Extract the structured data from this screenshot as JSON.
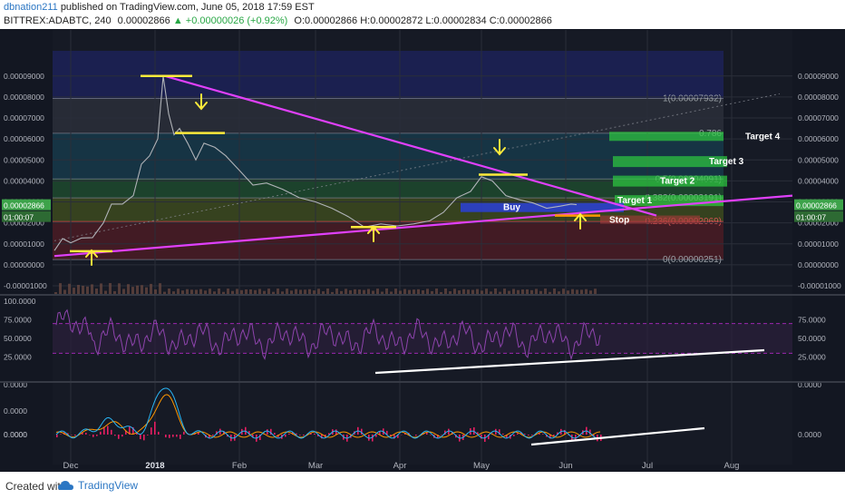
{
  "header": {
    "author": "dbnation211",
    "published": "published on TradingView.com, June 05, 2018 17:59 EST",
    "symbol": "BITTREX:ADABTC, 240",
    "price": "0.00002866",
    "change_arrow": "▲",
    "change": "+0.00000026 (+0.92%)",
    "ohlc": "O:0.00002866  H:0.00002872  L:0.00002834  C:0.00002866"
  },
  "footer": {
    "created": "Created with",
    "brand": "TradingView",
    "brand_icon": "tradingview-cloud-icon"
  },
  "colors": {
    "background": "#131722",
    "price_line": "#b0b3b8",
    "trendline": "#e040fb",
    "marker_yellow": "#ffeb3b",
    "target_green": "#2ecc40",
    "buy_blue": "#2a3fd8",
    "rsi_line": "#8e44ad",
    "macd_line": "#29b6f6",
    "signal_line": "#ff9800",
    "histogram": "#e91e63",
    "support_line": "#ffffff"
  },
  "chart_data": [
    {
      "type": "line",
      "title": "BITTREX:ADABTC, 240",
      "x_ticks": [
        "Dec",
        "2018",
        "Feb",
        "Mar",
        "Apr",
        "May",
        "Jun",
        "Jul",
        "Aug"
      ],
      "y_ticks_left": [
        "0.00009000",
        "0.00008000",
        "0.00007000",
        "0.00006000",
        "0.00005000",
        "0.00004000",
        "0.00003000",
        "0.00002000",
        "0.00001000",
        "0.00000000",
        "-0.00001000"
      ],
      "y_ticks_right": [
        "0.00009000",
        "0.00008000",
        "0.00007000",
        "0.00006000",
        "0.00005000",
        "0.00004000",
        "0.00003000",
        "0.00002000",
        "0.00001000",
        "0.00000000",
        "-0.00001000"
      ],
      "ylim": [
        -1.3e-05,
        0.000102
      ],
      "current_price_label": "0.00002866",
      "countdown_label": "01:00:07",
      "series": [
        {
          "values": [
            [
              "2017-11-25",
              6.8e-06
            ],
            [
              "2017-11-28",
              1.25e-05
            ],
            [
              "2017-12-01",
              1.05e-05
            ],
            [
              "2017-12-05",
              1.28e-05
            ],
            [
              "2017-12-09",
              1.3e-05
            ],
            [
              "2017-12-13",
              2e-05
            ],
            [
              "2017-12-16",
              2.9e-05
            ],
            [
              "2017-12-20",
              2.9e-05
            ],
            [
              "2017-12-24",
              3.3e-05
            ],
            [
              "2017-12-27",
              4.8e-05
            ],
            [
              "2017-12-30",
              5.2e-05
            ],
            [
              "2018-01-02",
              6e-05
            ],
            [
              "2018-01-04",
              9e-05
            ],
            [
              "2018-01-06",
              7.2e-05
            ],
            [
              "2018-01-08",
              6.2e-05
            ],
            [
              "2018-01-10",
              6.5e-05
            ],
            [
              "2018-01-13",
              5.8e-05
            ],
            [
              "2018-01-16",
              5e-05
            ],
            [
              "2018-01-19",
              5.8e-05
            ],
            [
              "2018-01-23",
              5.6e-05
            ],
            [
              "2018-01-27",
              5.2e-05
            ],
            [
              "2018-02-01",
              4.5e-05
            ],
            [
              "2018-02-06",
              3.8e-05
            ],
            [
              "2018-02-11",
              3.9e-05
            ],
            [
              "2018-02-17",
              3.6e-05
            ],
            [
              "2018-02-23",
              3.2e-05
            ],
            [
              "2018-03-01",
              3e-05
            ],
            [
              "2018-03-07",
              2.7e-05
            ],
            [
              "2018-03-13",
              2.3e-05
            ],
            [
              "2018-03-19",
              1.8e-05
            ],
            [
              "2018-03-25",
              1.95e-05
            ],
            [
              "2018-03-31",
              1.85e-05
            ],
            [
              "2018-04-06",
              1.95e-05
            ],
            [
              "2018-04-12",
              2.1e-05
            ],
            [
              "2018-04-17",
              2.5e-05
            ],
            [
              "2018-04-22",
              3.2e-05
            ],
            [
              "2018-04-27",
              3.5e-05
            ],
            [
              "2018-05-01",
              4.2e-05
            ],
            [
              "2018-05-05",
              4e-05
            ],
            [
              "2018-05-10",
              3.3e-05
            ],
            [
              "2018-05-15",
              3.1e-05
            ],
            [
              "2018-05-20",
              2.95e-05
            ],
            [
              "2018-05-25",
              2.7e-05
            ],
            [
              "2018-05-30",
              2.8e-05
            ],
            [
              "2018-06-03",
              2.9e-05
            ],
            [
              "2018-06-05",
              2.866e-05
            ]
          ]
        }
      ],
      "fib_levels": [
        {
          "label": "1(0.00007932)",
          "value": 7.932e-05
        },
        {
          "label": "0.786",
          "value": 6.27e-05
        },
        {
          "label": "0.5(0.00004091)",
          "value": 4.091e-05
        },
        {
          "label": "0.382(0.00003191)",
          "value": 3.191e-05
        },
        {
          "label": "0.236(0.00002069)",
          "value": 2.069e-05
        },
        {
          "label": "0(0.00000251)",
          "value": 2.51e-06
        }
      ],
      "annotations": {
        "target_4": "Target 4",
        "target_3": "Target 3",
        "target_2": "Target 2",
        "target_1": "Target 1",
        "buy": "Buy",
        "stop": "Stop"
      }
    },
    {
      "type": "line",
      "title": "",
      "y_ticks_left": [
        "100.0000",
        "75.0000",
        "50.0000",
        "25.0000"
      ],
      "y_ticks_right": [
        "75.0000",
        "50.0000",
        "25.0000"
      ],
      "ylim": [
        0,
        100
      ],
      "levels": [
        70,
        30
      ]
    },
    {
      "type": "line",
      "title": "",
      "y_ticks_left": [
        "0.0000",
        "0.0000",
        "0.0000",
        "0.0000"
      ],
      "y_ticks_right": [
        "0.0000",
        "0.0000"
      ]
    }
  ]
}
